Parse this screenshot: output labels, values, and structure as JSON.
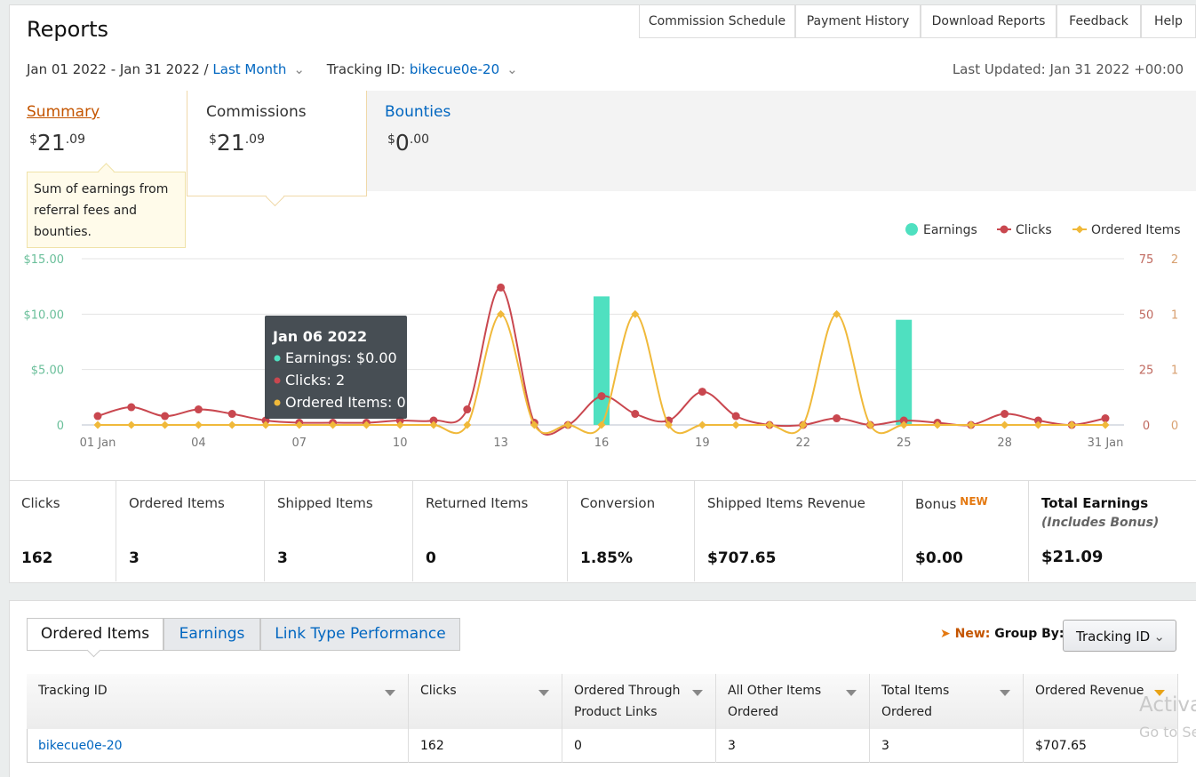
{
  "nav": [
    "Commission Schedule",
    "Payment History",
    "Download Reports",
    "Feedback",
    "Help"
  ],
  "header": {
    "title": "Reports",
    "date_range": "Jan 01 2022 - Jan 31 2022 /",
    "period": "Last Month",
    "tracking_label": "Tracking ID:",
    "tracking_id": "bikecue0e-20",
    "last_updated": "Last Updated: Jan 31 2022 +00:00"
  },
  "summary_tabs": [
    {
      "label": "Summary",
      "currency": "$",
      "whole": "21",
      "cents": ".09"
    },
    {
      "label": "Commissions",
      "currency": "$",
      "whole": "21",
      "cents": ".09"
    },
    {
      "label": "Bounties",
      "currency": "$",
      "whole": "0",
      "cents": ".00"
    }
  ],
  "summary_tooltip": "Sum of earnings from referral fees and bounties.",
  "chart_data": {
    "type": "combo",
    "categories": [
      "01 Jan",
      null,
      null,
      "04",
      null,
      null,
      "07",
      null,
      null,
      "10",
      null,
      null,
      "13",
      null,
      null,
      "16",
      null,
      null,
      "19",
      null,
      null,
      "22",
      null,
      null,
      "25",
      null,
      null,
      "28",
      null,
      null,
      "31 Jan"
    ],
    "series": [
      {
        "name": "Earnings",
        "type": "bar",
        "color": "#4fe0c0",
        "axis": "y",
        "values": [
          0,
          0,
          0,
          0,
          0,
          0,
          0,
          0,
          0,
          0,
          0,
          0,
          0,
          0,
          0,
          11.6,
          0,
          0,
          0,
          0,
          0,
          0,
          0,
          0,
          9.49,
          0,
          0,
          0,
          0,
          0,
          0
        ]
      },
      {
        "name": "Clicks",
        "type": "line",
        "color": "#c9474f",
        "axis": "y2",
        "values": [
          4,
          8,
          4,
          7,
          5,
          2,
          1,
          1,
          1,
          2,
          2,
          7,
          62,
          1,
          0,
          13,
          5,
          2,
          15,
          4,
          0,
          0,
          3,
          0,
          2,
          1,
          0,
          5,
          2,
          0,
          3
        ]
      },
      {
        "name": "Ordered Items",
        "type": "line",
        "marker": "diamond",
        "color": "#f0b93a",
        "axis": "y3",
        "values": [
          0,
          0,
          0,
          0,
          0,
          0,
          0,
          0,
          0,
          0,
          0,
          0,
          1,
          0,
          0,
          0,
          1,
          0,
          0,
          0,
          0,
          0,
          1,
          0,
          0,
          0,
          0,
          0,
          0,
          0,
          0
        ]
      }
    ],
    "ylim": [
      0,
      15
    ],
    "yticks": [
      0,
      {
        "value": 5,
        "label": "$5.00"
      },
      {
        "value": 10,
        "label": "$10.00"
      },
      {
        "value": 15,
        "label": "$15.00"
      }
    ],
    "y2lim": [
      0,
      75
    ],
    "y2ticks": [
      0,
      25,
      50,
      75
    ],
    "y3lim": [
      0,
      1.5
    ],
    "y3ticks": [
      0,
      {
        "value": 0.5,
        "label": "1"
      },
      {
        "value": 1,
        "label": "1"
      },
      {
        "value": 1.5,
        "label": "2"
      }
    ],
    "grid": true,
    "legend": "top-right",
    "tooltip": {
      "title": "Jan 06 2022",
      "lines": [
        "Earnings: $0.00",
        "Clicks: 2",
        "Ordered Items: 0"
      ]
    }
  },
  "stats": [
    {
      "label": "Clicks",
      "value": "162"
    },
    {
      "label": "Ordered Items",
      "value": "3"
    },
    {
      "label": "Shipped Items",
      "value": "3"
    },
    {
      "label": "Returned Items",
      "value": "0"
    },
    {
      "label": "Conversion",
      "value": "1.85%"
    },
    {
      "label": "Shipped Items Revenue",
      "value": "$707.65"
    },
    {
      "label": "Bonus",
      "badge": "NEW",
      "value": "$0.00"
    },
    {
      "label": "Total Earnings",
      "note": "(Includes Bonus)",
      "value": "$21.09"
    }
  ],
  "report_tabs": [
    "Ordered Items",
    "Earnings",
    "Link Type Performance"
  ],
  "group_by": {
    "new": "New:",
    "label": "Group By:",
    "selected": "Tracking ID"
  },
  "table": {
    "headers": [
      [
        "Tracking ID"
      ],
      [
        "Clicks"
      ],
      [
        "Ordered Through",
        "Product Links"
      ],
      [
        "All Other Items",
        "Ordered"
      ],
      [
        "Total Items",
        "Ordered"
      ],
      [
        "Ordered Revenue"
      ]
    ],
    "rows": [
      [
        "bikecue0e-20",
        "162",
        "0",
        "3",
        "3",
        "$707.65"
      ]
    ]
  },
  "watermark": [
    "Activa",
    "Go to Se"
  ]
}
